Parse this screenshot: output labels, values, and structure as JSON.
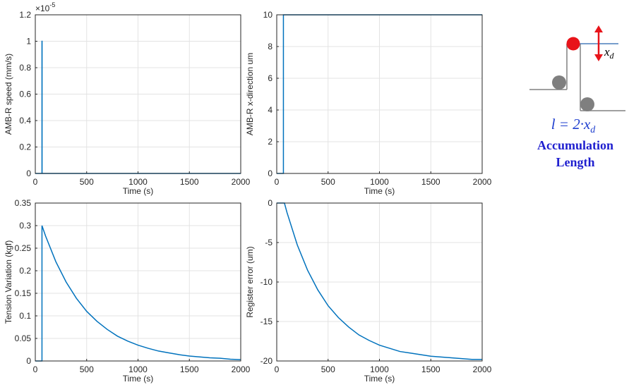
{
  "chart_data": [
    {
      "type": "line",
      "xlabel": "Time (s)",
      "ylabel": "AMB-R speed (mm/s)",
      "y_multiplier": "×10",
      "y_multiplier_exponent": "-5",
      "x": [
        0,
        65,
        65,
        66,
        66,
        2000
      ],
      "series": [
        {
          "color": "#0072bd",
          "values": [
            0,
            0,
            1,
            1,
            0,
            0
          ]
        }
      ],
      "xlim": [
        0,
        2000
      ],
      "xticks": [
        0,
        500,
        1000,
        1500,
        2000
      ],
      "ylim": [
        0,
        1.2
      ],
      "yticks": [
        0,
        0.2,
        0.4,
        0.6,
        0.8,
        1,
        1.2
      ],
      "grid": true
    },
    {
      "type": "line",
      "xlabel": "Time (s)",
      "ylabel": "AMB-R x-direction um",
      "x": [
        0,
        65,
        65,
        2000
      ],
      "series": [
        {
          "color": "#0072bd",
          "values": [
            0,
            0,
            10,
            10
          ]
        }
      ],
      "xlim": [
        0,
        2000
      ],
      "xticks": [
        0,
        500,
        1000,
        1500,
        2000
      ],
      "ylim": [
        0,
        10
      ],
      "yticks": [
        0,
        2,
        4,
        6,
        8,
        10
      ],
      "grid": true
    },
    {
      "type": "line",
      "xlabel": "Time (s)",
      "ylabel": "Tension Variation (kgf)",
      "x": [
        0,
        65,
        65,
        100,
        200,
        300,
        400,
        500,
        600,
        700,
        800,
        900,
        1000,
        1100,
        1200,
        1300,
        1400,
        1500,
        1600,
        1700,
        1800,
        1900,
        2000
      ],
      "series": [
        {
          "color": "#0072bd",
          "values": [
            0,
            0,
            0.3,
            0.277,
            0.22,
            0.175,
            0.139,
            0.11,
            0.088,
            0.07,
            0.055,
            0.044,
            0.035,
            0.028,
            0.022,
            0.018,
            0.014,
            0.011,
            0.009,
            0.007,
            0.006,
            0.004,
            0.003
          ]
        }
      ],
      "xlim": [
        0,
        2000
      ],
      "xticks": [
        0,
        500,
        1000,
        1500,
        2000
      ],
      "ylim": [
        0,
        0.35
      ],
      "yticks": [
        0,
        0.05,
        0.1,
        0.15,
        0.2,
        0.25,
        0.3,
        0.35
      ],
      "grid": true
    },
    {
      "type": "line",
      "xlabel": "Time (s)",
      "ylabel": "Register error (um)",
      "x": [
        0,
        75,
        100,
        200,
        300,
        400,
        500,
        600,
        700,
        800,
        900,
        1000,
        1100,
        1200,
        1300,
        1400,
        1500,
        1600,
        1700,
        1800,
        1900,
        2000
      ],
      "series": [
        {
          "color": "#0072bd",
          "values": [
            0,
            0,
            -1.2,
            -5.3,
            -8.5,
            -11.0,
            -13.0,
            -14.5,
            -15.7,
            -16.7,
            -17.4,
            -18.0,
            -18.4,
            -18.8,
            -19.0,
            -19.2,
            -19.4,
            -19.5,
            -19.6,
            -19.7,
            -19.8,
            -19.8
          ]
        }
      ],
      "xlim": [
        0,
        2000
      ],
      "xticks": [
        0,
        500,
        1000,
        1500,
        2000
      ],
      "ylim": [
        -20,
        0
      ],
      "yticks": [
        -20,
        -15,
        -10,
        -5,
        0
      ],
      "grid": true
    }
  ],
  "diagram": {
    "xd_label": "x",
    "xd_subscript": "d",
    "formula": "l = 2·x",
    "formula_subscript": "d",
    "caption": [
      "Accumulation",
      "Length"
    ]
  }
}
